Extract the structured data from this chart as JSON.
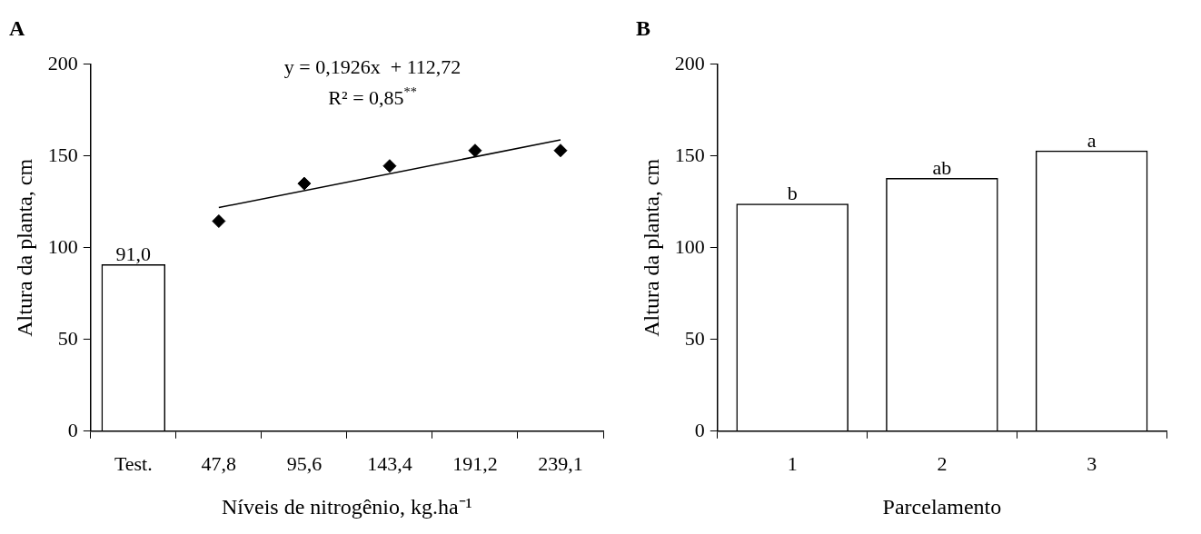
{
  "chart_data": [
    {
      "type": "bar",
      "title": "A",
      "xlabel": "Níveis de nitrogênio, kg.ha⁻¹",
      "ylabel": "Altura da planta, cm",
      "categories": [
        "Test.",
        "47,8",
        "95,6",
        "143,4",
        "191,2",
        "239,1"
      ],
      "ylim": [
        0,
        200
      ],
      "yticks": [
        0,
        50,
        100,
        150,
        200
      ],
      "series": [
        {
          "type": "bar",
          "color": "#000000",
          "values": [
            91,
            null,
            null,
            null,
            null,
            null
          ],
          "value_labels": [
            "91,0",
            null,
            null,
            null,
            null,
            null
          ]
        },
        {
          "type": "scatter",
          "color": "#000000",
          "marker": "diamond",
          "x": [
            "47,8",
            "95,6",
            "143,4",
            "191,2",
            "239,1"
          ],
          "values": [
            114.5,
            135,
            144.6,
            153,
            153
          ]
        },
        {
          "type": "line",
          "color": "#000000",
          "marker": "none",
          "x": [
            "47,8",
            "239,1"
          ],
          "values": [
            121.9,
            158.8
          ]
        }
      ],
      "annotations": [
        "y = 0,1926x  + 112,72",
        "R² = 0,85$^{**}$"
      ]
    },
    {
      "type": "bar",
      "title": "B",
      "xlabel": "Parcelamento",
      "ylabel": "Altura da planta, cm",
      "categories": [
        "1",
        "2",
        "3"
      ],
      "values": [
        124,
        138,
        153
      ],
      "color": "#000000",
      "ylim": [
        0,
        200
      ],
      "yticks": [
        0,
        50,
        100,
        150,
        200
      ],
      "annotations": [
        {
          "text": "b",
          "x": "1",
          "y": 124
        },
        {
          "text": "ab",
          "x": "2",
          "y": 138
        },
        {
          "text": "a",
          "x": "3",
          "y": 153
        }
      ]
    }
  ]
}
